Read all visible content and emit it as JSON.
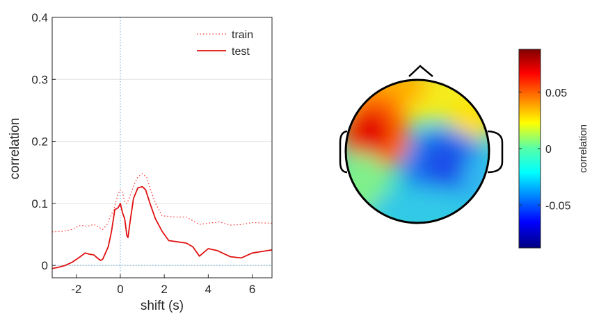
{
  "chart_data": [
    {
      "type": "line",
      "xlabel": "shift (s)",
      "ylabel": "correlation",
      "xlim": [
        -3.1,
        6.9
      ],
      "ylim": [
        -0.02,
        0.4
      ],
      "x_ticks": [
        "-2",
        "0",
        "2",
        "4",
        "6"
      ],
      "y_ticks": [
        "0",
        "0.1",
        "0.2",
        "0.3",
        "0.4"
      ],
      "grid": "horizontal",
      "legend_placement": "top-right",
      "reference_lines": {
        "x": 0,
        "y": 0
      },
      "colors": {
        "train": "#ff3030",
        "test": "#e01010",
        "reference": "#5fa8d8"
      },
      "series": [
        {
          "name": "train",
          "style": "dotted",
          "x": [
            -3.1,
            -2.6,
            -2.2,
            -1.8,
            -1.5,
            -1.2,
            -1.0,
            -0.8,
            -0.6,
            -0.5,
            -0.3,
            -0.2,
            -0.1,
            0,
            0.1,
            0.2,
            0.3,
            0.4,
            0.6,
            0.8,
            1.0,
            1.2,
            1.4,
            1.6,
            1.9,
            2.5,
            3.0,
            3.6,
            4.0,
            4.5,
            5.0,
            5.5,
            6.0,
            6.9
          ],
          "y": [
            0.054,
            0.055,
            0.058,
            0.065,
            0.063,
            0.066,
            0.062,
            0.058,
            0.066,
            0.075,
            0.09,
            0.103,
            0.115,
            0.122,
            0.118,
            0.102,
            0.1,
            0.108,
            0.128,
            0.143,
            0.148,
            0.142,
            0.12,
            0.1,
            0.08,
            0.078,
            0.078,
            0.066,
            0.068,
            0.07,
            0.065,
            0.066,
            0.069,
            0.068
          ]
        },
        {
          "name": "test",
          "style": "solid",
          "x": [
            -3.1,
            -2.8,
            -2.5,
            -2.2,
            -1.9,
            -1.6,
            -1.4,
            -1.2,
            -1.05,
            -0.9,
            -0.8,
            -0.7,
            -0.55,
            -0.4,
            -0.25,
            -0.1,
            0,
            0.1,
            0.2,
            0.3,
            0.35,
            0.45,
            0.6,
            0.8,
            1.0,
            1.15,
            1.35,
            1.6,
            1.9,
            2.2,
            3.0,
            3.3,
            3.6,
            4.0,
            4.4,
            5.0,
            5.5,
            6.0,
            6.9
          ],
          "y": [
            -0.005,
            -0.003,
            0.0,
            0.005,
            0.012,
            0.02,
            0.018,
            0.017,
            0.012,
            0.008,
            0.01,
            0.018,
            0.03,
            0.055,
            0.09,
            0.093,
            0.1,
            0.085,
            0.075,
            0.048,
            0.045,
            0.072,
            0.108,
            0.125,
            0.127,
            0.122,
            0.1,
            0.075,
            0.055,
            0.04,
            0.036,
            0.03,
            0.015,
            0.027,
            0.024,
            0.014,
            0.012,
            0.02,
            0.025
          ]
        }
      ]
    },
    {
      "type": "heatmap",
      "subtype": "scalp-topography",
      "colorbar_label": "correlation",
      "colorbar_ticks": [
        "0.05",
        "0",
        "-0.05"
      ],
      "colorbar_range": [
        -0.088,
        0.088
      ],
      "colormap": "jet",
      "hotspots": [
        {
          "region": "left temporal",
          "value": 0.085
        },
        {
          "region": "frontal",
          "value": 0.035
        },
        {
          "region": "right frontal",
          "value": 0.02
        },
        {
          "region": "central-right",
          "value": -0.07
        },
        {
          "region": "left posterior",
          "value": 0.0
        },
        {
          "region": "occipital",
          "value": -0.02
        }
      ]
    }
  ]
}
